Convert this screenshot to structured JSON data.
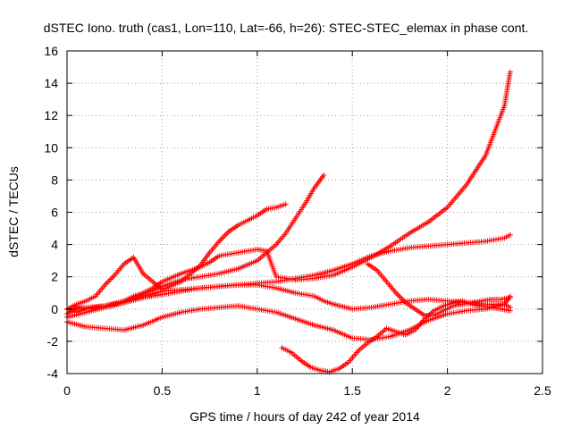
{
  "chart_data": {
    "type": "scatter",
    "title": "dSTEC Iono. truth (cas1, Lon=110, Lat=-66, h=26): STEC-STEC_elemax in phase cont.",
    "xlabel": "GPS time / hours of day 242 of year 2014",
    "ylabel": "dSTEC  / TECUs",
    "xlim": [
      0,
      2.5
    ],
    "ylim": [
      -4,
      16
    ],
    "xticks": [
      0,
      0.5,
      1,
      1.5,
      2,
      2.5
    ],
    "xtick_labels": [
      "0",
      "0.5",
      "1",
      "1.5",
      "2",
      "2.5"
    ],
    "yticks": [
      -4,
      -2,
      0,
      2,
      4,
      6,
      8,
      10,
      12,
      14,
      16
    ],
    "ytick_labels": [
      "-4",
      "-2",
      "0",
      "2",
      "4",
      "6",
      "8",
      "10",
      "12",
      "14",
      "16"
    ],
    "grid": true,
    "marker": "+",
    "marker_color": "#ff0000",
    "series": [
      {
        "x": [
          0.0,
          0.05,
          0.1,
          0.15,
          0.2,
          0.25,
          0.3,
          0.35,
          0.4,
          0.45,
          0.5,
          0.6,
          0.7,
          0.75,
          0.8,
          0.9,
          1.0,
          1.05,
          1.1,
          1.2,
          1.3,
          1.4,
          1.5,
          1.6,
          1.7,
          1.8,
          1.9,
          2.0,
          2.1,
          2.2,
          2.3,
          2.33
        ],
        "y": [
          -0.3,
          0.1,
          0.0,
          0.1,
          0.2,
          0.3,
          0.5,
          0.8,
          1.0,
          1.3,
          1.7,
          2.2,
          2.6,
          2.9,
          3.3,
          3.5,
          3.7,
          3.6,
          2.0,
          1.8,
          1.9,
          2.1,
          2.6,
          3.2,
          3.9,
          4.7,
          5.4,
          6.3,
          7.7,
          9.5,
          12.6,
          14.7
        ]
      },
      {
        "x": [
          0.0,
          0.05,
          0.1,
          0.15,
          0.2,
          0.25,
          0.3,
          0.35,
          0.4,
          0.5,
          0.6,
          0.7,
          0.75,
          0.8,
          0.85,
          0.9,
          1.0,
          1.05,
          1.1,
          1.15
        ],
        "y": [
          0.0,
          0.3,
          0.5,
          0.8,
          1.5,
          2.1,
          2.8,
          3.2,
          2.2,
          1.2,
          1.7,
          2.7,
          3.5,
          4.2,
          4.8,
          5.2,
          5.8,
          6.2,
          6.3,
          6.5
        ]
      },
      {
        "x": [
          0.0,
          0.05,
          0.1,
          0.2,
          0.3,
          0.4,
          0.5,
          0.6,
          0.7,
          0.8,
          0.9,
          1.0,
          1.05,
          1.1,
          1.15,
          1.2,
          1.25,
          1.3,
          1.35
        ],
        "y": [
          0.0,
          -0.2,
          0.0,
          0.2,
          0.5,
          0.9,
          1.4,
          1.8,
          2.0,
          2.2,
          2.5,
          3.0,
          3.5,
          4.0,
          4.7,
          5.6,
          6.5,
          7.5,
          8.3
        ]
      },
      {
        "x": [
          0.0,
          0.1,
          0.2,
          0.3,
          0.4,
          0.5,
          0.6,
          0.7,
          0.8,
          0.9,
          1.0,
          1.1,
          1.2,
          1.3,
          1.4,
          1.5,
          1.6,
          1.7,
          1.8,
          1.9,
          2.0,
          2.1,
          2.2,
          2.3,
          2.33
        ],
        "y": [
          -0.5,
          -0.2,
          0.1,
          0.4,
          0.7,
          0.9,
          1.1,
          1.3,
          1.4,
          1.5,
          1.6,
          1.7,
          1.9,
          2.1,
          2.4,
          2.8,
          3.3,
          3.6,
          3.8,
          3.9,
          4.0,
          4.1,
          4.2,
          4.4,
          4.6
        ]
      },
      {
        "x": [
          0.0,
          0.1,
          0.2,
          0.3,
          0.4,
          0.5,
          0.6,
          0.7,
          0.8,
          0.9,
          1.0,
          1.1,
          1.2,
          1.3,
          1.35,
          1.4,
          1.5,
          1.6,
          1.7,
          1.8,
          1.9,
          2.0,
          2.1,
          2.2,
          2.3,
          2.33
        ],
        "y": [
          0.0,
          0.1,
          0.2,
          0.4,
          0.8,
          1.1,
          1.2,
          1.3,
          1.4,
          1.5,
          1.5,
          1.3,
          1.0,
          0.8,
          0.5,
          0.3,
          0.0,
          0.1,
          0.3,
          0.5,
          0.6,
          0.5,
          0.4,
          0.3,
          0.3,
          0.1
        ]
      },
      {
        "x": [
          0.0,
          0.1,
          0.2,
          0.3,
          0.4,
          0.5,
          0.6,
          0.7,
          0.8,
          0.9,
          1.0,
          1.1,
          1.2,
          1.3,
          1.4,
          1.5,
          1.6,
          1.7,
          1.8,
          1.9,
          2.0,
          2.1,
          2.2,
          2.3,
          2.33
        ],
        "y": [
          -0.8,
          -1.1,
          -1.2,
          -1.3,
          -1.0,
          -0.5,
          -0.2,
          0.0,
          0.1,
          0.2,
          0.0,
          -0.2,
          -0.6,
          -1.0,
          -1.3,
          -1.8,
          -1.9,
          -1.7,
          -1.3,
          -0.7,
          -0.3,
          -0.1,
          0.0,
          0.3,
          0.8
        ]
      },
      {
        "x": [
          1.13,
          1.18,
          1.23,
          1.28,
          1.33,
          1.38,
          1.43,
          1.48,
          1.53,
          1.58,
          1.63,
          1.68,
          1.73,
          1.78,
          1.83,
          1.88,
          1.93,
          1.98,
          2.03,
          2.08,
          2.13,
          2.18,
          2.23,
          2.28,
          2.33
        ],
        "y": [
          -2.4,
          -2.7,
          -3.2,
          -3.6,
          -3.8,
          -3.9,
          -3.7,
          -3.3,
          -2.6,
          -2.1,
          -1.7,
          -1.2,
          -1.4,
          -1.6,
          -1.3,
          -0.6,
          -0.1,
          0.2,
          0.4,
          0.5,
          0.3,
          0.2,
          0.1,
          0.0,
          -0.1
        ]
      },
      {
        "x": [
          1.58,
          1.63,
          1.68,
          1.73,
          1.78,
          1.83,
          1.88,
          1.93,
          1.98,
          2.03,
          2.08,
          2.13,
          2.18,
          2.23,
          2.28,
          2.33
        ],
        "y": [
          2.8,
          2.4,
          1.7,
          1.0,
          0.4,
          0.0,
          -0.4,
          -0.4,
          -0.1,
          0.2,
          0.3,
          0.4,
          0.5,
          0.6,
          0.6,
          0.7
        ]
      }
    ]
  }
}
